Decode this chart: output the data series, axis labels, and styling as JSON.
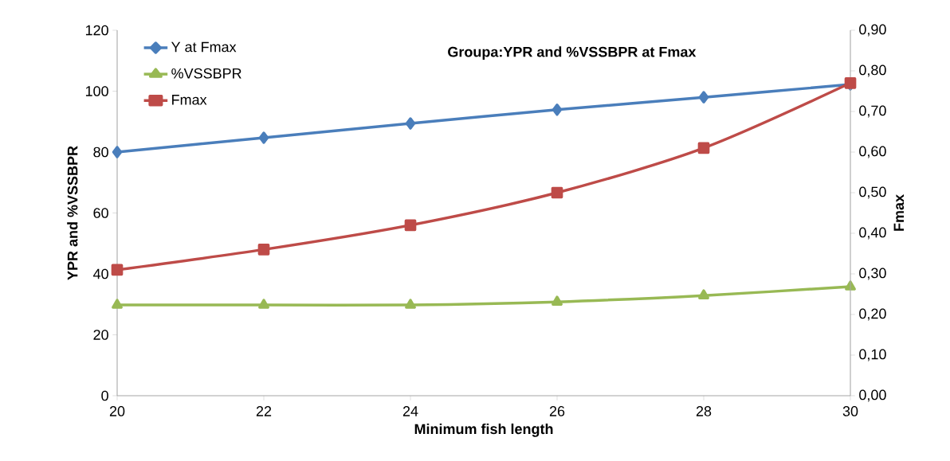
{
  "chart_data": {
    "type": "line",
    "title": "Groupa:YPR and %VSSBPR at Fmax",
    "xlabel": "Minimum fish length",
    "ylabel": "YPR and %VSSBPR",
    "y2label": "Fmax",
    "x": [
      20,
      22,
      24,
      26,
      28,
      30
    ],
    "xlim": [
      20,
      30
    ],
    "xticks": [
      20,
      22,
      24,
      26,
      28,
      30
    ],
    "ylim": [
      0,
      120
    ],
    "yticks": [
      0,
      20,
      40,
      60,
      80,
      100,
      120
    ],
    "y2lim": [
      0,
      0.9
    ],
    "y2ticks": [
      {
        "value": 0,
        "label": "0,00"
      },
      {
        "value": 0.1,
        "label": "0,10"
      },
      {
        "value": 0.2,
        "label": "0,20"
      },
      {
        "value": 0.3,
        "label": "0,30"
      },
      {
        "value": 0.4,
        "label": "0,40"
      },
      {
        "value": 0.5,
        "label": "0,50"
      },
      {
        "value": 0.6,
        "label": "0,60"
      },
      {
        "value": 0.7,
        "label": "0,70"
      },
      {
        "value": 0.8,
        "label": "0,80"
      },
      {
        "value": 0.9,
        "label": "0,90"
      }
    ],
    "series": [
      {
        "name": "Y at Fmax",
        "color": "#4a7ebb",
        "marker": "diamond",
        "values": [
          80,
          84.7,
          89.4,
          93.9,
          98,
          102.2
        ]
      },
      {
        "name": "%VSSBPR",
        "color": "#98b954",
        "marker": "triangle",
        "values": [
          29.8,
          29.8,
          29.8,
          30.8,
          32.9,
          35.8
        ]
      },
      {
        "name": "Fmax",
        "color": "#be4b48",
        "marker": "square",
        "axis": "y2",
        "values": [
          0.31,
          0.36,
          0.42,
          0.5,
          0.61,
          0.77
        ]
      }
    ],
    "line_style": "solid",
    "grid": false,
    "legend": "top left"
  }
}
